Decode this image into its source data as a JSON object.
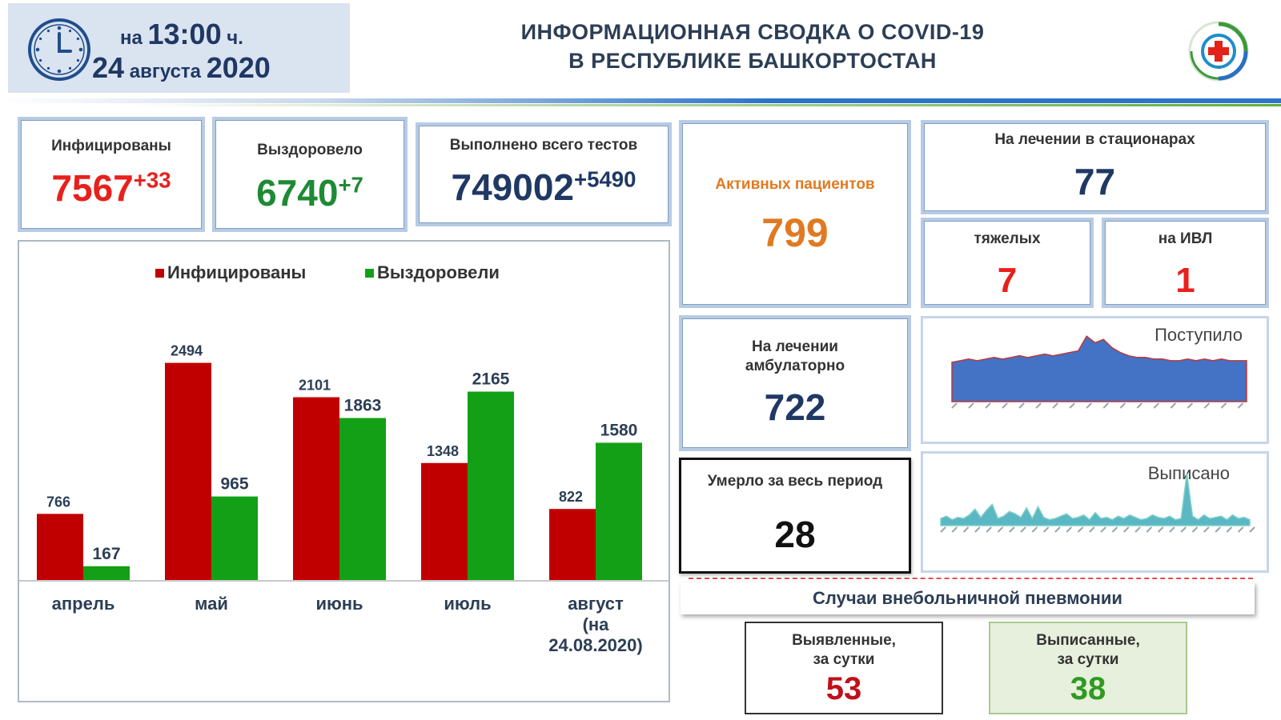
{
  "header": {
    "time_prefix": "на",
    "time": "13:00",
    "time_suffix": "ч.",
    "date_day": "24",
    "date_month": "августа",
    "date_year": "2020",
    "title_line1": "ИНФОРМАЦИОННАЯ СВОДКА О COVID-19",
    "title_line2": "В РЕСПУБЛИКЕ БАШКОРТОСТАН"
  },
  "stats": {
    "infected": {
      "label": "Инфицированы",
      "value": "7567",
      "delta": "+33",
      "color": "#e8201c"
    },
    "recovered": {
      "label": "Выздоровело",
      "value": "6740",
      "delta": "+7",
      "color": "#1e8a34"
    },
    "tests": {
      "label": "Выполнено всего тестов",
      "value": "749002",
      "delta": "+5490",
      "color": "#1f3864"
    },
    "active": {
      "label": "Активных пациентов",
      "value": "799",
      "color": "#e07a22"
    },
    "hospital": {
      "label": "На лечении в стационарах",
      "value": "77"
    },
    "severe": {
      "label": "тяжелых",
      "value": "7"
    },
    "ventilator": {
      "label": "на ИВЛ",
      "value": "1"
    },
    "outpatient": {
      "label_line1": "На лечении",
      "label_line2": "амбулаторно",
      "value": "722"
    },
    "deaths": {
      "label": "Умерло за весь период",
      "value": "28"
    }
  },
  "pneumonia": {
    "title": "Случаи внебольничной пневмонии",
    "detected": {
      "label_line1": "Выявленные,",
      "label_line2": "за сутки",
      "value": "53",
      "color": "#c0101a"
    },
    "discharged": {
      "label_line1": "Выписанные,",
      "label_line2": "за сутки",
      "value": "38",
      "color": "#2f9a21"
    }
  },
  "mini_charts": {
    "admitted": {
      "title": "Поступило",
      "color": "#4472c4",
      "values": [
        24,
        25,
        26,
        25,
        26,
        27,
        26,
        27,
        28,
        27,
        28,
        29,
        28,
        29,
        30,
        31,
        40,
        36,
        38,
        33,
        30,
        28,
        27,
        27,
        26,
        26,
        25,
        25,
        26,
        25,
        26,
        25,
        26,
        25,
        25,
        25
      ]
    },
    "discharged": {
      "title": "Выписано",
      "color": "#5bb7c4",
      "values": [
        6,
        8,
        5,
        7,
        6,
        9,
        14,
        7,
        13,
        18,
        6,
        8,
        12,
        10,
        7,
        15,
        6,
        16,
        7,
        5,
        6,
        8,
        10,
        6,
        7,
        9,
        5,
        11,
        6,
        7,
        5,
        8,
        6,
        9,
        7,
        5,
        6,
        9,
        7,
        6,
        8,
        5,
        6,
        44,
        8,
        5,
        9,
        6,
        7,
        8,
        5,
        9,
        6,
        7,
        5
      ]
    }
  },
  "chart_data": {
    "type": "bar",
    "categories": [
      "апрель",
      "май",
      "июнь",
      "июль",
      "август (на 24.08.2020)"
    ],
    "category_lines": [
      [
        "апрель"
      ],
      [
        "май"
      ],
      [
        "июнь"
      ],
      [
        "июль"
      ],
      [
        "август",
        "(на",
        "24.08.2020)"
      ]
    ],
    "series": [
      {
        "name": "Инфицированы",
        "values": [
          766,
          2494,
          2101,
          1348,
          822
        ],
        "color": "#c00000"
      },
      {
        "name": "Выздоровели",
        "values": [
          167,
          965,
          1863,
          2165,
          1580
        ],
        "color": "#13a016"
      }
    ],
    "ylim": [
      0,
      2600
    ],
    "legend_position": "top",
    "grid": false
  }
}
